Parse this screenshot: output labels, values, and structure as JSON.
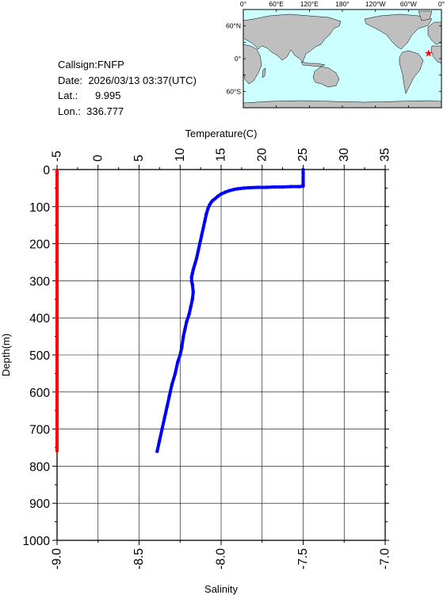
{
  "station": {
    "callsign_label": "Callsign:",
    "callsign": "FNFP",
    "date_label": "Date:",
    "date": "2026/03/13 03:37(UTC)",
    "lat_label": "Lat.:",
    "lat": "9.995",
    "lon_label": "Lon.:",
    "lon": "336.777"
  },
  "map": {
    "top_labels": [
      "0°",
      "60°E",
      "120°E",
      "180°",
      "120°W",
      "60°W",
      "0°"
    ],
    "lat_labels": [
      "60°N",
      "0°",
      "60°S"
    ],
    "marker": {
      "lon": 336.777,
      "lat": 9.995,
      "color": "#ff0000",
      "icon": "star-icon"
    },
    "ocean_color": "#ccffff",
    "land_color": "#bfbfbf"
  },
  "chart_data": {
    "type": "line",
    "ylabel": "Depth(m)",
    "ylim": [
      1000,
      0
    ],
    "y_ticks": [
      0,
      100,
      200,
      300,
      400,
      500,
      600,
      700,
      800,
      900,
      1000
    ],
    "top_axis": {
      "label": "Temperature(C)",
      "range": [
        -5,
        35
      ],
      "ticks": [
        -5,
        0,
        5,
        10,
        15,
        20,
        25,
        30,
        35
      ]
    },
    "bottom_axis": {
      "label": "Salinity",
      "range": [
        -9.0,
        -7.0
      ],
      "ticks": [
        "-9.0",
        "-8.5",
        "-8.0",
        "-7.5",
        "-7.0"
      ]
    },
    "grid": true,
    "series": [
      {
        "color": "#0000ff",
        "axis": "top",
        "points": [
          [
            25.0,
            0
          ],
          [
            25.0,
            10
          ],
          [
            25.0,
            20
          ],
          [
            25.0,
            30
          ],
          [
            25.0,
            40
          ],
          [
            25.0,
            45
          ],
          [
            24.5,
            46
          ],
          [
            23.5,
            46
          ],
          [
            22.5,
            47
          ],
          [
            21.5,
            47
          ],
          [
            20.5,
            48
          ],
          [
            19.5,
            48
          ],
          [
            18.5,
            49
          ],
          [
            17.8,
            50
          ],
          [
            17.0,
            52
          ],
          [
            16.5,
            54
          ],
          [
            16.0,
            57
          ],
          [
            15.5,
            61
          ],
          [
            15.0,
            66
          ],
          [
            14.6,
            72
          ],
          [
            14.3,
            78
          ],
          [
            14.0,
            83
          ],
          [
            13.8,
            88
          ],
          [
            13.6,
            95
          ],
          [
            13.4,
            105
          ],
          [
            13.2,
            120
          ],
          [
            13.0,
            140
          ],
          [
            12.8,
            160
          ],
          [
            12.6,
            180
          ],
          [
            12.4,
            200
          ],
          [
            12.2,
            220
          ],
          [
            12.0,
            240
          ],
          [
            11.8,
            255
          ],
          [
            11.6,
            270
          ],
          [
            11.5,
            280
          ],
          [
            11.4,
            290
          ],
          [
            11.4,
            300
          ],
          [
            11.5,
            310
          ],
          [
            11.6,
            330
          ],
          [
            11.5,
            350
          ],
          [
            11.3,
            370
          ],
          [
            11.1,
            390
          ],
          [
            10.8,
            410
          ],
          [
            10.6,
            430
          ],
          [
            10.4,
            450
          ],
          [
            10.2,
            480
          ],
          [
            10.0,
            500
          ],
          [
            9.7,
            520
          ],
          [
            9.4,
            550
          ],
          [
            9.0,
            580
          ],
          [
            8.7,
            610
          ],
          [
            8.4,
            640
          ],
          [
            8.1,
            670
          ],
          [
            7.8,
            700
          ],
          [
            7.5,
            730
          ],
          [
            7.2,
            760
          ]
        ]
      },
      {
        "color": "#ff0000",
        "axis": "bottom",
        "points": [
          [
            -9.0,
            0
          ],
          [
            -9.0,
            762
          ]
        ]
      }
    ]
  }
}
